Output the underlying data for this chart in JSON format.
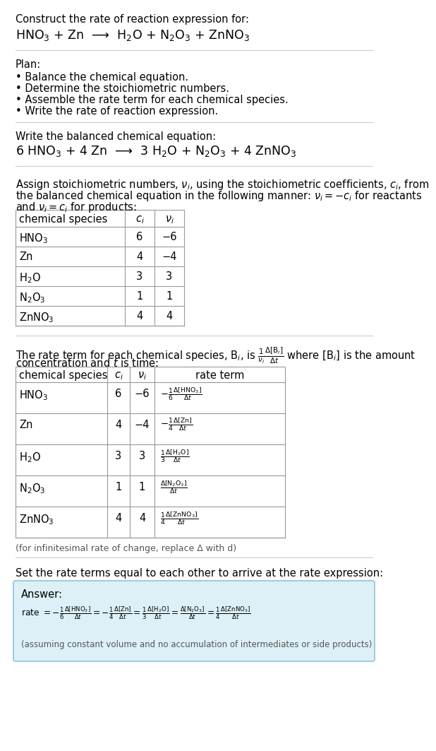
{
  "title_line1": "Construct the rate of reaction expression for:",
  "title_line2": "HNO$_3$ + Zn  ⟶  H$_2$O + N$_2$O$_3$ + ZnNO$_3$",
  "plan_header": "Plan:",
  "plan_items": [
    "• Balance the chemical equation.",
    "• Determine the stoichiometric numbers.",
    "• Assemble the rate term for each chemical species.",
    "• Write the rate of reaction expression."
  ],
  "balanced_header": "Write the balanced chemical equation:",
  "balanced_eq": "6 HNO$_3$ + 4 Zn  ⟶  3 H$_2$O + N$_2$O$_3$ + 4 ZnNO$_3$",
  "stoich_intro1": "Assign stoichiometric numbers, $\\nu_i$, using the stoichiometric coefficients, $c_i$, from",
  "stoich_intro2": "the balanced chemical equation in the following manner: $\\nu_i = -c_i$ for reactants",
  "stoich_intro3": "and $\\nu_i = c_i$ for products:",
  "table1_headers": [
    "chemical species",
    "$c_i$",
    "$\\nu_i$"
  ],
  "table1_rows": [
    [
      "HNO$_3$",
      "6",
      "−6"
    ],
    [
      "Zn",
      "4",
      "−4"
    ],
    [
      "H$_2$O",
      "3",
      "3"
    ],
    [
      "N$_2$O$_3$",
      "1",
      "1"
    ],
    [
      "ZnNO$_3$",
      "4",
      "4"
    ]
  ],
  "rate_intro1": "The rate term for each chemical species, B$_i$, is $\\frac{1}{\\nu_i}\\frac{\\Delta[\\mathrm{B}_i]}{\\Delta t}$ where [B$_i$] is the amount",
  "rate_intro2": "concentration and $t$ is time:",
  "table2_headers": [
    "chemical species",
    "$c_i$",
    "$\\nu_i$",
    "rate term"
  ],
  "table2_rows": [
    [
      "HNO$_3$",
      "6",
      "−6",
      "$-\\frac{1}{6}\\frac{\\Delta[\\mathrm{HNO_3}]}{\\Delta t}$"
    ],
    [
      "Zn",
      "4",
      "−4",
      "$-\\frac{1}{4}\\frac{\\Delta[\\mathrm{Zn}]}{\\Delta t}$"
    ],
    [
      "H$_2$O",
      "3",
      "3",
      "$\\frac{1}{3}\\frac{\\Delta[\\mathrm{H_2O}]}{\\Delta t}$"
    ],
    [
      "N$_2$O$_3$",
      "1",
      "1",
      "$\\frac{\\Delta[\\mathrm{N_2O_3}]}{\\Delta t}$"
    ],
    [
      "ZnNO$_3$",
      "4",
      "4",
      "$\\frac{1}{4}\\frac{\\Delta[\\mathrm{ZnNO_3}]}{\\Delta t}$"
    ]
  ],
  "infinitesimal_note": "(for infinitesimal rate of change, replace Δ with d)",
  "set_equal_text": "Set the rate terms equal to each other to arrive at the rate expression:",
  "answer_label": "Answer:",
  "answer_box_color": "#ddf0f8",
  "answer_border_color": "#90c4d8",
  "answer_eq": "rate $= -\\frac{1}{6}\\frac{\\Delta[\\mathrm{HNO_3}]}{\\Delta t} = -\\frac{1}{4}\\frac{\\Delta[\\mathrm{Zn}]}{\\Delta t} = \\frac{1}{3}\\frac{\\Delta[\\mathrm{H_2O}]}{\\Delta t} = \\frac{\\Delta[\\mathrm{N_2O_3}]}{\\Delta t} = \\frac{1}{4}\\frac{\\Delta[\\mathrm{ZnNO_3}]}{\\Delta t}$",
  "answer_note": "(assuming constant volume and no accumulation of intermediates or side products)",
  "bg_color": "#ffffff",
  "text_color": "#000000",
  "gray_text": "#555555",
  "table_border_color": "#999999",
  "section_line_color": "#cccccc",
  "body_fontsize": 10.5,
  "small_fontsize": 9.0,
  "title2_fontsize": 12.5,
  "balanced_fontsize": 12.5
}
